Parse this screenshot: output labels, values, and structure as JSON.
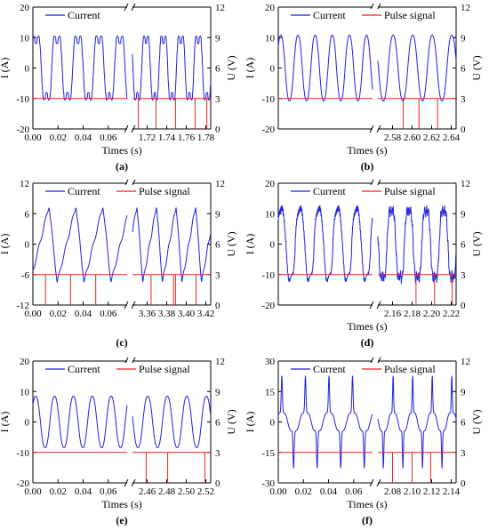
{
  "colors": {
    "current": "#2222dd",
    "pulse": "#ee2222",
    "axis": "#000000"
  },
  "chart_data": [
    {
      "type": "line",
      "label": "(a)",
      "xlabel": "Times (s)",
      "ylabel_left": "I (A)",
      "ylabel_right": "U (V)",
      "ylim_left": [
        -20,
        20
      ],
      "yticks_left": [
        -20,
        -10,
        0,
        10,
        20
      ],
      "ylim_right": [
        0,
        12
      ],
      "yticks_right": [
        0,
        3,
        6,
        9,
        12
      ],
      "legend": [
        "Current"
      ],
      "x_segments": [
        {
          "xlim": [
            0.0,
            0.075
          ],
          "ticks": [
            0.0,
            0.02,
            0.04,
            0.06
          ],
          "tick_labels": [
            "0.00",
            "0.02",
            "0.04",
            "0.06"
          ]
        },
        {
          "xlim": [
            1.705,
            1.785
          ],
          "ticks": [
            1.72,
            1.74,
            1.76,
            1.78
          ],
          "tick_labels": [
            "1.72",
            "1.74",
            "1.76",
            "1.78"
          ]
        }
      ],
      "current": {
        "amplitude": 15.5,
        "offset": 0,
        "waveform": "stepped",
        "cycles_per_segment": [
          4.5,
          4.5
        ]
      },
      "pulse_signal": {
        "baseline": 3.0,
        "low": 0.0,
        "pulses_segment2": [
          1.711,
          1.729,
          1.749,
          1.769,
          1.781
        ]
      }
    },
    {
      "type": "line",
      "label": "(b)",
      "xlabel": "Times (s)",
      "ylabel_left": "I (A)",
      "ylabel_right": "U (V)",
      "ylim_left": [
        -20,
        20
      ],
      "yticks_left": [
        -20,
        -10,
        0,
        10,
        20
      ],
      "ylim_right": [
        0,
        12
      ],
      "yticks_right": [
        0,
        3,
        6,
        9,
        12
      ],
      "legend": [
        "Current",
        "Pulse signal"
      ],
      "x_segments": [
        {
          "xlim": [
            0.0,
            0.08
          ],
          "ticks": [],
          "tick_labels": []
        },
        {
          "xlim": [
            2.565,
            2.645
          ],
          "ticks": [
            2.58,
            2.6,
            2.62,
            2.64
          ],
          "tick_labels": [
            "2.58",
            "2.60",
            "2.62",
            "2.64"
          ]
        }
      ],
      "current": {
        "amplitude": 11.5,
        "offset": 0,
        "waveform": "sine",
        "cycles_per_segment": [
          5.5,
          4
        ]
      },
      "pulse_signal": {
        "baseline": 3.0,
        "low": 0.0,
        "pulses_segment2": [
          2.591,
          2.607,
          2.626
        ]
      }
    },
    {
      "type": "line",
      "label": "(c)",
      "xlabel": "",
      "ylabel_left": "I (A)",
      "ylabel_right": "U (V)",
      "ylim_left": [
        -12,
        12
      ],
      "yticks_left": [
        -12,
        -6,
        0,
        6,
        12
      ],
      "ylim_right": [
        0,
        12
      ],
      "yticks_right": [
        0,
        3,
        6,
        9,
        12
      ],
      "legend": [
        "Current",
        "Pulse signal"
      ],
      "x_segments": [
        {
          "xlim": [
            0.0,
            0.075
          ],
          "ticks": [
            0.0,
            0.02,
            0.04,
            0.06
          ],
          "tick_labels": [
            "0.00",
            "0.02",
            "0.04",
            "0.06"
          ]
        },
        {
          "xlim": [
            3.345,
            3.425
          ],
          "ticks": [
            3.36,
            3.38,
            3.4,
            3.42
          ],
          "tick_labels": [
            "3.36",
            "3.38",
            "3.40",
            "3.42"
          ]
        }
      ],
      "current": {
        "amplitude": 8,
        "offset": 0,
        "waveform": "sawtooth",
        "cycles_per_segment": [
          3.5,
          4
        ]
      },
      "pulse_signal": {
        "baseline": 3.0,
        "low": 0.0,
        "pulses_segment1": [
          0.01,
          0.03,
          0.05
        ],
        "pulses_segment2": [
          3.364,
          3.387,
          3.389,
          3.41
        ]
      }
    },
    {
      "type": "line",
      "label": "(d)",
      "xlabel": "Times (s)",
      "ylabel_left": "I (A)",
      "ylabel_right": "U (V)",
      "ylim_left": [
        -20,
        20
      ],
      "yticks_left": [
        -20,
        -10,
        0,
        10,
        20
      ],
      "ylim_right": [
        0,
        12
      ],
      "yticks_right": [
        0,
        3,
        6,
        9,
        12
      ],
      "legend": [
        "Current",
        "Pulse signal"
      ],
      "x_segments": [
        {
          "xlim": [
            0.0,
            0.08
          ],
          "ticks": [],
          "tick_labels": []
        },
        {
          "xlim": [
            2.145,
            2.225
          ],
          "ticks": [
            2.16,
            2.18,
            2.2,
            2.22
          ],
          "tick_labels": [
            "2.16",
            "2.18",
            "2.20",
            "2.22"
          ]
        }
      ],
      "current": {
        "amplitude": 15,
        "offset": 0,
        "waveform": "noisy",
        "cycles_per_segment": [
          5,
          4.5
        ]
      },
      "pulse_signal": {
        "baseline": 3.0,
        "low": 0.0,
        "pulses_segment2": [
          2.184,
          2.203,
          2.221
        ]
      }
    },
    {
      "type": "line",
      "label": "(e)",
      "xlabel": "Times (s)",
      "ylabel_left": "I (A)",
      "ylabel_right": "U (V)",
      "ylim_left": [
        -20,
        20
      ],
      "yticks_left": [
        -20,
        -10,
        0,
        10,
        20
      ],
      "ylim_right": [
        0,
        12
      ],
      "yticks_right": [
        0,
        3,
        6,
        9,
        12
      ],
      "legend": [
        "Current",
        "Pulse signal"
      ],
      "x_segments": [
        {
          "xlim": [
            0.0,
            0.075
          ],
          "ticks": [
            0.0,
            0.02,
            0.04,
            0.06
          ],
          "tick_labels": [
            "0.00",
            "0.02",
            "0.04",
            "0.06"
          ]
        },
        {
          "xlim": [
            2.445,
            2.525
          ],
          "ticks": [
            2.46,
            2.48,
            2.5,
            2.52
          ],
          "tick_labels": [
            "2.46",
            "2.48",
            "2.50",
            "2.52"
          ]
        }
      ],
      "current": {
        "amplitude": 9,
        "offset": 0,
        "waveform": "sine",
        "cycles_per_segment": [
          5,
          4
        ]
      },
      "pulse_signal": {
        "baseline": 3.0,
        "low": 0.0,
        "pulses_segment2": [
          2.459,
          2.481,
          2.519
        ]
      }
    },
    {
      "type": "line",
      "label": "(f)",
      "xlabel": "Times (s)",
      "ylabel_left": "I (A)",
      "ylabel_right": "U (V)",
      "ylim_left": [
        -30,
        30
      ],
      "yticks_left": [
        -30,
        -15,
        0,
        15,
        30
      ],
      "ylim_right": [
        0,
        12
      ],
      "yticks_right": [
        0,
        3,
        6,
        9,
        12
      ],
      "legend": [
        "Current",
        "Pulse signal"
      ],
      "x_segments": [
        {
          "xlim": [
            0.0,
            0.075
          ],
          "ticks": [
            0.0,
            0.02,
            0.04,
            0.06
          ],
          "tick_labels": [
            "0.00",
            "0.02",
            "0.04",
            "0.06"
          ]
        },
        {
          "xlim": [
            2.065,
            2.145
          ],
          "ticks": [
            2.08,
            2.1,
            2.12,
            2.14
          ],
          "tick_labels": [
            "2.08",
            "2.10",
            "2.12",
            "2.14"
          ]
        }
      ],
      "current": {
        "amplitude": 20,
        "offset": 0,
        "waveform": "spiky",
        "cycles_per_segment": [
          4,
          4
        ]
      },
      "pulse_signal": {
        "baseline": 3.0,
        "low": 0.0,
        "pulses_segment2": [
          2.08,
          2.1,
          2.119
        ]
      }
    }
  ]
}
